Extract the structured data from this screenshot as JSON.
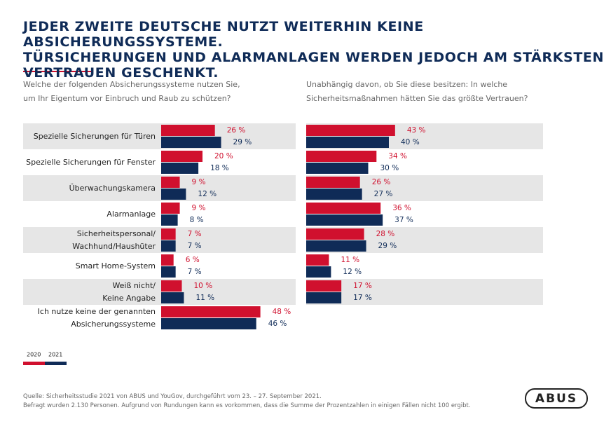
{
  "title": "JEDER ZWEITE DEUTSCHE NUTZT WEITERHIN KEINE ABSICHERUNGSSYSTEME.\nTÜRSICHERUNGEN UND ALARMANLAGEN WERDEN JEDOCH AM STÄRKSTEN\nVERTRAUEN GESCHENKT.",
  "chart_data": [
    {
      "type": "hbar",
      "subtitle": "Welche der folgenden Absicherungssysteme nutzen Sie,\num Ihr Eigentum vor Einbruch und Raub zu schützen?",
      "categories": [
        "Spezielle Sicherungen für Türen",
        "Spezielle Sicherungen für Fenster",
        "Überwachungskamera",
        "Alarmanlage",
        "Sicherheitspersonal/\nWachhund/Haushüter",
        "Smart Home-System",
        "Weiß nicht/\nKeine Angabe",
        "Ich nutze keine der genannten\nAbsicherungssysteme"
      ],
      "series": [
        {
          "name": "2020",
          "color": "#d0102e",
          "values": [
            26,
            20,
            9,
            9,
            7,
            6,
            10,
            48
          ],
          "value_labels": [
            "26 %",
            "20 %",
            "9 %",
            "9 %",
            "7 %",
            "6 %",
            "10 %",
            "48 %"
          ]
        },
        {
          "name": "2021",
          "color": "#0f2b57",
          "values": [
            29,
            18,
            12,
            8,
            7,
            7,
            11,
            46
          ],
          "value_labels": [
            "29 %",
            "18 %",
            "12 %",
            "8 %",
            "7 %",
            "7 %",
            "11 %",
            "46 %"
          ]
        }
      ]
    },
    {
      "type": "hbar",
      "subtitle": "Unabhängig davon, ob Sie diese besitzen: In welche\nSicherheitsmaßnahmen hätten Sie das größte Vertrauen?",
      "series": [
        {
          "color": "#d0102e",
          "values": [
            43,
            34,
            26,
            36,
            28,
            11,
            17
          ],
          "value_labels": [
            "43 %",
            "34 %",
            "26 %",
            "36 %",
            "28 %",
            "11 %",
            "17 %"
          ]
        },
        {
          "color": "#0f2b57",
          "values": [
            40,
            30,
            27,
            37,
            29,
            12,
            17
          ],
          "value_labels": [
            "40 %",
            "30 %",
            "27 %",
            "37 %",
            "29 %",
            "12 %",
            "17 %"
          ]
        }
      ]
    }
  ],
  "footer": {
    "source": "Quelle: Sicherheitsstudie 2021 von ABUS und YouGov, durchgeführt vom 23. – 27. September 2021.",
    "note": "Befragt wurden 2.130 Personen. Aufgrund von Rundungen kann es vorkommen, dass die Summe der Prozentzahlen in einigen Fällen nicht 100 ergibt.",
    "logo": "ABUS"
  }
}
